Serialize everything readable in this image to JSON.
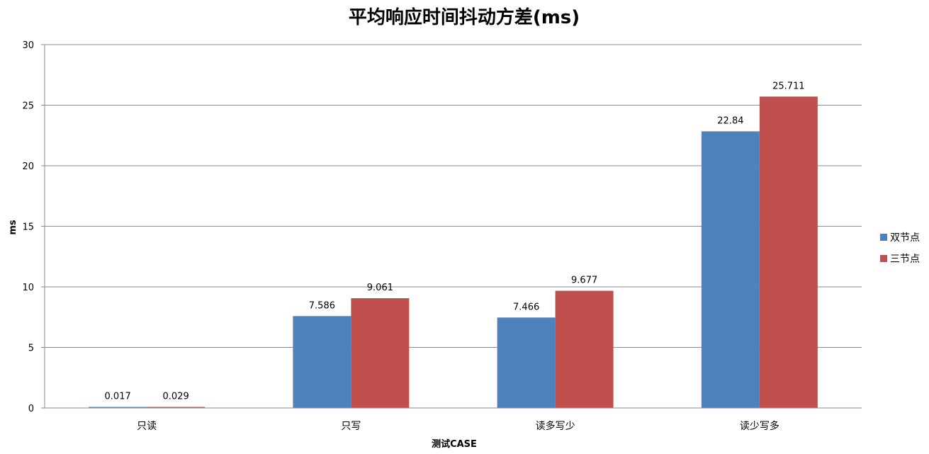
{
  "chart_data": {
    "type": "bar",
    "title": "平均响应时间抖动方差(ms)",
    "xlabel": "测试CASE",
    "ylabel": "ms",
    "categories": [
      "只读",
      "只写",
      "读多写少",
      "读少写多"
    ],
    "series": [
      {
        "name": "双节点",
        "values": [
          0.017,
          7.586,
          7.466,
          22.84
        ],
        "labels": [
          "0.017",
          "7.586",
          "7.466",
          "22.84"
        ],
        "color": "#4f81bd"
      },
      {
        "name": "三节点",
        "values": [
          0.029,
          9.061,
          9.677,
          25.711
        ],
        "labels": [
          "0.029",
          "9.061",
          "9.677",
          "25.711"
        ],
        "color": "#c0504d"
      }
    ],
    "ylim": [
      0,
      30
    ],
    "yticks": [
      0,
      5,
      10,
      15,
      20,
      25,
      30
    ],
    "grid": true,
    "legend_position": "right",
    "gridline_color": "#8c8c8c"
  }
}
